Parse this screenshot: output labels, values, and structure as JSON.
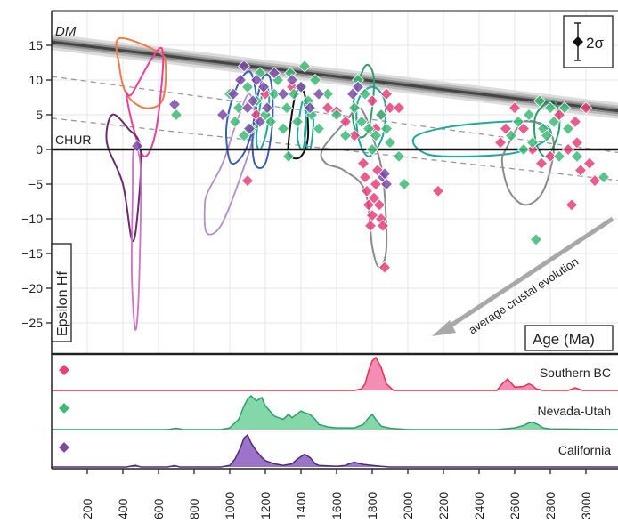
{
  "chart_data": [
    {
      "type": "scatter",
      "title": "",
      "xlabel": "Age (Ma)",
      "ylabel": "Epsilon Hf",
      "xlim": [
        0,
        3200
      ],
      "ylim": [
        -30,
        18
      ],
      "x_ticks": [
        "200",
        "400",
        "600",
        "800",
        "1000",
        "1200",
        "1400",
        "1600",
        "1800",
        "2000",
        "2200",
        "2400",
        "2600",
        "2800",
        "3000"
      ],
      "y_ticks": [
        "15",
        "10",
        "5",
        "0",
        "−5",
        "−10",
        "−15",
        "−20",
        "−25"
      ],
      "y_tick_values": [
        15,
        10,
        5,
        0,
        -5,
        -10,
        -15,
        -20,
        -25
      ],
      "dm_label": "DM",
      "chur_label": "CHUR",
      "error_label": "2σ",
      "annotation": "average crustal evolution",
      "dm_line": {
        "x": [
          0,
          3200
        ],
        "y": [
          15.5,
          5.5
        ]
      },
      "crustal_lines": [
        {
          "x": [
            0,
            3200
          ],
          "y": [
            10.5,
            -0.5
          ]
        },
        {
          "x": [
            0,
            3200
          ],
          "y": [
            4.5,
            -4.5
          ]
        }
      ],
      "series": [
        {
          "marker": "diamond",
          "color": "#e8407a",
          "points": [
            [
              1100,
              -4.5
            ],
            [
              1150,
              5
            ],
            [
              1200,
              8
            ],
            [
              1350,
              9
            ],
            [
              1550,
              6
            ],
            [
              1600,
              5.5
            ],
            [
              1650,
              4
            ],
            [
              1700,
              2
            ],
            [
              1750,
              -2
            ],
            [
              1760,
              -4
            ],
            [
              1770,
              -6
            ],
            [
              1780,
              -8
            ],
            [
              1790,
              -11
            ],
            [
              1800,
              -9.5
            ],
            [
              1810,
              -7
            ],
            [
              1820,
              -5
            ],
            [
              1830,
              -3
            ],
            [
              1840,
              -8
            ],
            [
              1850,
              -10
            ],
            [
              1860,
              -11
            ],
            [
              1870,
              -17
            ],
            [
              1800,
              7
            ],
            [
              1820,
              3
            ],
            [
              1850,
              5
            ],
            [
              1880,
              8
            ],
            [
              1900,
              6
            ],
            [
              1950,
              6
            ],
            [
              2170,
              -6
            ],
            [
              2520,
              1
            ],
            [
              2550,
              3
            ],
            [
              2600,
              6
            ],
            [
              2650,
              3
            ],
            [
              2700,
              0
            ],
            [
              2750,
              -2
            ],
            [
              2800,
              -1
            ],
            [
              2850,
              5
            ],
            [
              2900,
              0
            ],
            [
              2920,
              -8
            ],
            [
              2940,
              4
            ],
            [
              2950,
              1
            ],
            [
              2970,
              -3
            ],
            [
              3000,
              6
            ],
            [
              3020,
              -2
            ],
            [
              3050,
              -4.5
            ]
          ]
        },
        {
          "marker": "diamond",
          "color": "#3dba76",
          "points": [
            [
              700,
              5
            ],
            [
              1000,
              8
            ],
            [
              1030,
              4
            ],
            [
              1050,
              6
            ],
            [
              1080,
              2
            ],
            [
              1100,
              9
            ],
            [
              1120,
              3
            ],
            [
              1150,
              7
            ],
            [
              1170,
              11
            ],
            [
              1200,
              5
            ],
            [
              1230,
              4
            ],
            [
              1250,
              8
            ],
            [
              1270,
              10
            ],
            [
              1300,
              3
            ],
            [
              1320,
              6
            ],
            [
              1340,
              11
            ],
            [
              1360,
              8
            ],
            [
              1380,
              4
            ],
            [
              1400,
              9
            ],
            [
              1420,
              12
            ],
            [
              1440,
              7
            ],
            [
              1460,
              5
            ],
            [
              1480,
              10
            ],
            [
              1500,
              3
            ],
            [
              1550,
              8
            ],
            [
              1600,
              5
            ],
            [
              1650,
              2
            ],
            [
              1700,
              6
            ],
            [
              1720,
              10
            ],
            [
              1740,
              4
            ],
            [
              1760,
              8
            ],
            [
              1780,
              3
            ],
            [
              1800,
              0
            ],
            [
              1820,
              2
            ],
            [
              1850,
              5
            ],
            [
              1880,
              3
            ],
            [
              1900,
              1
            ],
            [
              1950,
              -1
            ],
            [
              1980,
              -5
            ],
            [
              2580,
              2
            ],
            [
              2620,
              4
            ],
            [
              2650,
              0
            ],
            [
              2680,
              5
            ],
            [
              2700,
              1
            ],
            [
              2720,
              -13
            ],
            [
              2740,
              7
            ],
            [
              2760,
              3
            ],
            [
              2780,
              2
            ],
            [
              2800,
              6
            ],
            [
              2820,
              4
            ],
            [
              2850,
              -1
            ],
            [
              2880,
              6
            ],
            [
              2900,
              3
            ],
            [
              2950,
              -1
            ],
            [
              3100,
              -4
            ],
            [
              1330,
              -1
            ]
          ]
        },
        {
          "marker": "diamond",
          "color": "#7b4aa8",
          "points": [
            [
              480,
              0.5
            ],
            [
              690,
              6.5
            ],
            [
              960,
              5
            ],
            [
              1020,
              8
            ],
            [
              1060,
              10
            ],
            [
              1080,
              12
            ],
            [
              1100,
              6
            ],
            [
              1110,
              3
            ],
            [
              1130,
              7
            ],
            [
              1150,
              10
            ],
            [
              1170,
              4
            ],
            [
              1190,
              9
            ],
            [
              1210,
              6
            ],
            [
              1250,
              11
            ],
            [
              1300,
              8
            ],
            [
              1350,
              10
            ],
            [
              1400,
              9
            ],
            [
              1450,
              6
            ],
            [
              1500,
              8
            ],
            [
              1690,
              8
            ],
            [
              1720,
              9
            ],
            [
              1860,
              -4
            ],
            [
              1880,
              -5
            ],
            [
              1870,
              -3.5
            ]
          ]
        }
      ],
      "fields": [
        {
          "name": "orange",
          "color": "#f07a4a"
        },
        {
          "name": "magenta",
          "color": "#e8409a"
        },
        {
          "name": "dark-purple",
          "color": "#6b2a6a"
        },
        {
          "name": "light-magenta",
          "color": "#d070c8"
        },
        {
          "name": "lilac",
          "color": "#b38ccc"
        },
        {
          "name": "blue",
          "color": "#3a5fb0"
        },
        {
          "name": "teal",
          "color": "#20a8a0"
        },
        {
          "name": "black",
          "color": "#111111"
        },
        {
          "name": "gray",
          "color": "#8a8a8a"
        },
        {
          "name": "green",
          "color": "#2aa068"
        }
      ],
      "grid": true
    },
    {
      "type": "area",
      "xlim": [
        0,
        3200
      ],
      "series": [
        {
          "name": "Southern BC",
          "color": "#e8304a",
          "fill": "#f07aa8",
          "marker_color": "#e8407a",
          "x": [
            0,
            1700,
            1740,
            1760,
            1780,
            1800,
            1820,
            1850,
            1880,
            1920,
            2500,
            2530,
            2560,
            2600,
            2650,
            2680,
            2700,
            2720,
            2760,
            2900,
            2940,
            2980,
            3200
          ],
          "y": [
            0,
            0,
            0.05,
            0.2,
            0.6,
            0.9,
            1.0,
            0.7,
            0.2,
            0,
            0,
            0.2,
            0.35,
            0.1,
            0.12,
            0.2,
            0.15,
            0.05,
            0,
            0,
            0.08,
            0,
            0
          ]
        },
        {
          "name": "Nevada-Utah",
          "color": "#2aa068",
          "fill": "#6fd09a",
          "marker_color": "#3dba76",
          "x": [
            0,
            650,
            700,
            740,
            950,
            1000,
            1050,
            1080,
            1100,
            1120,
            1150,
            1180,
            1200,
            1250,
            1300,
            1330,
            1350,
            1400,
            1420,
            1450,
            1480,
            1500,
            1550,
            1600,
            1700,
            1750,
            1780,
            1800,
            1820,
            1850,
            1900,
            1950,
            2000,
            2500,
            2600,
            2650,
            2680,
            2700,
            2730,
            2760,
            2800,
            3200
          ],
          "y": [
            0,
            0,
            0.04,
            0,
            0,
            0.05,
            0.3,
            0.7,
            0.9,
            1.0,
            0.85,
            0.95,
            0.7,
            0.4,
            0.3,
            0.45,
            0.35,
            0.55,
            0.5,
            0.45,
            0.3,
            0.15,
            0.08,
            0.05,
            0.05,
            0.15,
            0.35,
            0.45,
            0.3,
            0.1,
            0.04,
            0.02,
            0,
            0,
            0.05,
            0.12,
            0.2,
            0.22,
            0.15,
            0.05,
            0.02,
            0
          ]
        },
        {
          "name": "California",
          "color": "#4e2a78",
          "fill": "#8a5ac0",
          "marker_color": "#7b4aa8",
          "x": [
            0,
            420,
            470,
            500,
            650,
            690,
            720,
            950,
            1000,
            1030,
            1060,
            1080,
            1100,
            1120,
            1150,
            1180,
            1200,
            1250,
            1300,
            1350,
            1380,
            1420,
            1450,
            1480,
            1500,
            1600,
            1650,
            1680,
            1700,
            1750,
            1800,
            1850,
            1900,
            3200
          ],
          "y": [
            0,
            0,
            0.05,
            0,
            0,
            0.04,
            0,
            0,
            0.05,
            0.25,
            0.6,
            0.9,
            1.0,
            0.75,
            0.5,
            0.3,
            0.2,
            0.1,
            0.05,
            0.1,
            0.25,
            0.4,
            0.3,
            0.1,
            0.05,
            0.02,
            0.05,
            0.12,
            0.15,
            0.08,
            0.05,
            0.02,
            0,
            0
          ]
        }
      ]
    }
  ]
}
